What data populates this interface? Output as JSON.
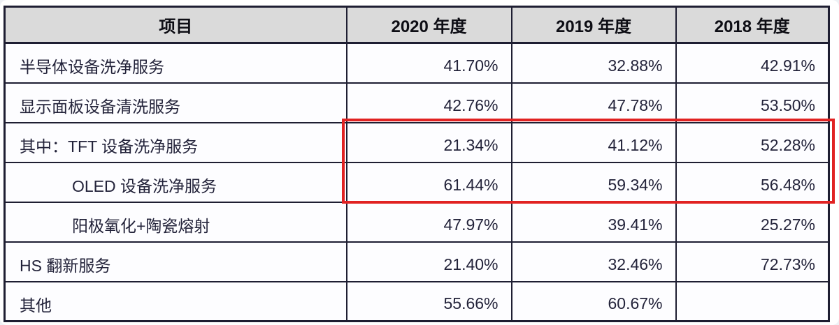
{
  "table": {
    "columns": [
      {
        "label": "项目"
      },
      {
        "label": "2020 年度"
      },
      {
        "label": "2019 年度"
      },
      {
        "label": "2018 年度"
      }
    ],
    "rows": [
      {
        "label": "半导体设备洗净服务",
        "values": [
          "41.70%",
          "32.88%",
          "42.91%"
        ],
        "highlighted": false
      },
      {
        "label": "显示面板设备清洗服务",
        "values": [
          "42.76%",
          "47.78%",
          "53.50%"
        ],
        "highlighted": false
      },
      {
        "label": "其中：TFT 设备洗净服务",
        "values": [
          "21.34%",
          "41.12%",
          "52.28%"
        ],
        "highlighted": true
      },
      {
        "label": "OLED 设备洗净服务",
        "values": [
          "61.44%",
          "59.34%",
          "56.48%"
        ],
        "highlighted": true
      },
      {
        "label": "阳极氧化+陶瓷熔射",
        "values": [
          "47.97%",
          "39.41%",
          "25.27%"
        ],
        "highlighted": false
      },
      {
        "label": "HS 翻新服务",
        "values": [
          "21.40%",
          "32.46%",
          "72.73%"
        ],
        "highlighted": false
      },
      {
        "label": "其他",
        "values": [
          "55.66%",
          "60.67%",
          ""
        ],
        "highlighted": false
      }
    ]
  },
  "annotation": {
    "type": "red-highlight-rectangle",
    "covers_rows": [
      "其中：TFT 设备洗净服务",
      "OLED 设备洗净服务"
    ],
    "covers_columns": [
      "2020 年度",
      "2019 年度",
      "2018 年度"
    ]
  },
  "colors": {
    "header_background": "#dadada",
    "cell_background": "#fdfdff",
    "border": "#1e1e32",
    "text": "#23233a",
    "highlight_red": "#e12222"
  }
}
